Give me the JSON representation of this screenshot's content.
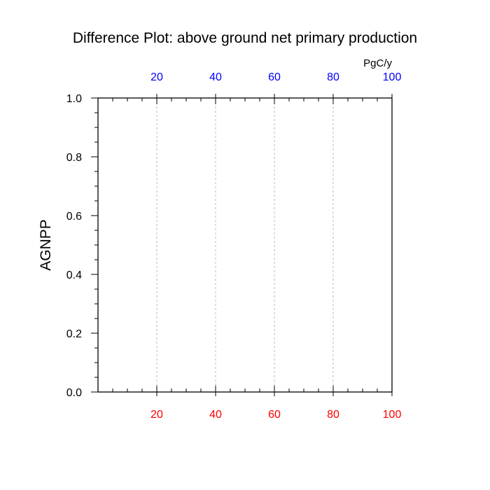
{
  "chart_data": {
    "type": "line",
    "title": "Difference Plot: above ground net primary production",
    "ylabel": "AGNPP",
    "top_axis_unit": "PgC/y",
    "xlim": [
      0,
      100
    ],
    "ylim": [
      0,
      1
    ],
    "x_ticks": [
      20,
      40,
      60,
      80,
      100
    ],
    "x_tick_labels": [
      "20",
      "40",
      "60",
      "80",
      "100"
    ],
    "y_ticks": [
      0,
      0.2,
      0.4,
      0.6,
      0.8,
      1.0
    ],
    "y_tick_labels": [
      "0.0",
      "0.2",
      "0.4",
      "0.6",
      "0.8",
      "1.0"
    ],
    "x_minor_step": 5,
    "y_minor_step": 0.05,
    "grid": "vertical dashed at major x ticks",
    "bottom_tick_label_color": "#ff0000",
    "top_tick_label_color": "#0000ff",
    "series": []
  }
}
